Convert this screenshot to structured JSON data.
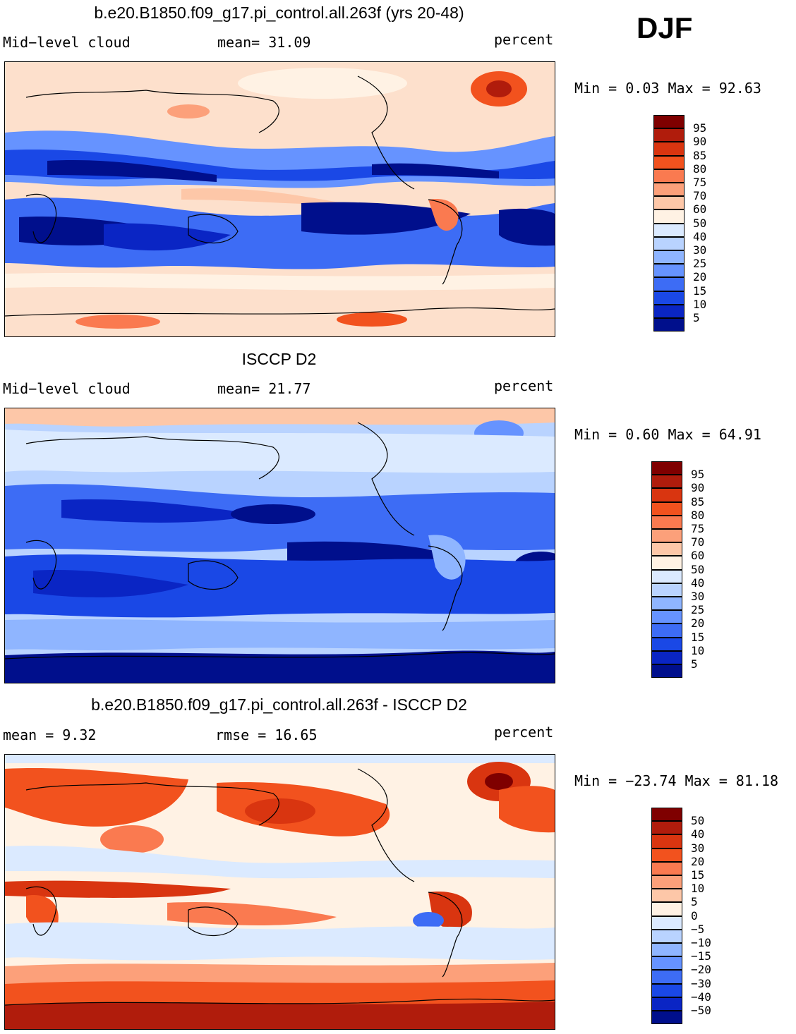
{
  "season": "DJF",
  "panels": [
    {
      "title": "b.e20.B1850.f09_g17.pi_control.all.263f (yrs 20-48)",
      "left_label": "Mid−level cloud",
      "stat_text": "mean=  31.09",
      "units": "percent",
      "min_max": "Min =   0.03 Max =  92.63",
      "colorbar": {
        "colors": [
          "#7f0000",
          "#b01c0c",
          "#d93510",
          "#f2521e",
          "#fa7a50",
          "#fca07a",
          "#fdc7a8",
          "#fff2e4",
          "#dbeaff",
          "#b9d3ff",
          "#8fb5ff",
          "#6693ff",
          "#3d6cf5",
          "#1a48e6",
          "#0a25c4",
          "#000f8c"
        ],
        "labels": [
          "95",
          "90",
          "85",
          "80",
          "75",
          "70",
          "60",
          "50",
          "40",
          "30",
          "25",
          "20",
          "15",
          "10",
          "5"
        ]
      }
    },
    {
      "title": "ISCCP D2",
      "left_label": "Mid−level cloud",
      "stat_text": "mean=  21.77",
      "units": "percent",
      "min_max": "Min =   0.60 Max =  64.91",
      "colorbar": {
        "colors": [
          "#7f0000",
          "#b01c0c",
          "#d93510",
          "#f2521e",
          "#fa7a50",
          "#fca07a",
          "#fdc7a8",
          "#fff2e4",
          "#dbeaff",
          "#b9d3ff",
          "#8fb5ff",
          "#6693ff",
          "#3d6cf5",
          "#1a48e6",
          "#0a25c4",
          "#000f8c"
        ],
        "labels": [
          "95",
          "90",
          "85",
          "80",
          "75",
          "70",
          "60",
          "50",
          "40",
          "30",
          "25",
          "20",
          "15",
          "10",
          "5"
        ]
      }
    },
    {
      "title": "b.e20.B1850.f09_g17.pi_control.all.263f - ISCCP D2",
      "left_label": "mean =   9.32",
      "stat_text": "rmse =  16.65",
      "units": "percent",
      "min_max": "Min = −23.74 Max =  81.18",
      "colorbar": {
        "colors": [
          "#7f0000",
          "#b01c0c",
          "#d93510",
          "#f2521e",
          "#fa7a50",
          "#fca07a",
          "#fdc7a8",
          "#fff2e4",
          "#dbeaff",
          "#b9d3ff",
          "#8fb5ff",
          "#6693ff",
          "#3d6cf5",
          "#1a48e6",
          "#0a25c4",
          "#000f8c"
        ],
        "labels": [
          "50",
          "40",
          "30",
          "20",
          "15",
          "10",
          "5",
          "0",
          "−5",
          "−10",
          "−15",
          "−20",
          "−30",
          "−40",
          "−50"
        ]
      }
    }
  ]
}
